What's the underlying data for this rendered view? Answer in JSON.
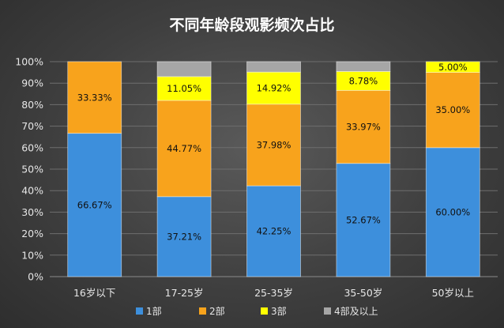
{
  "chart_data": {
    "type": "bar",
    "stacked": true,
    "title": "不同年龄段观影频次占比",
    "categories": [
      "16岁以下",
      "17-25岁",
      "25-35岁",
      "35-50岁",
      "50岁以上"
    ],
    "series": [
      {
        "name": "1部",
        "color": "#3d8fdc",
        "values": [
          66.67,
          37.21,
          42.25,
          52.67,
          60.0
        ],
        "labels": [
          "66.67%",
          "37.21%",
          "42.25%",
          "52.67%",
          "60.00%"
        ]
      },
      {
        "name": "2部",
        "color": "#f8a31c",
        "values": [
          33.33,
          44.77,
          37.98,
          33.97,
          35.0
        ],
        "labels": [
          "33.33%",
          "44.77%",
          "37.98%",
          "33.97%",
          "35.00%"
        ]
      },
      {
        "name": "3部",
        "color": "#ffff00",
        "values": [
          0,
          11.05,
          14.92,
          8.78,
          5.0
        ],
        "labels": [
          "",
          "11.05%",
          "14.92%",
          "8.78%",
          "5.00%"
        ]
      },
      {
        "name": "4部及以上",
        "color": "#a6a6a6",
        "values": [
          0,
          6.97,
          4.85,
          4.58,
          0
        ],
        "labels": [
          "",
          "",
          "",
          "",
          ""
        ]
      }
    ],
    "yticks": [
      "0%",
      "10%",
      "20%",
      "30%",
      "40%",
      "50%",
      "60%",
      "70%",
      "80%",
      "90%",
      "100%"
    ],
    "ylim": [
      0,
      100
    ],
    "xlabel": "",
    "ylabel": "",
    "grid": true,
    "legend": "bottom"
  }
}
